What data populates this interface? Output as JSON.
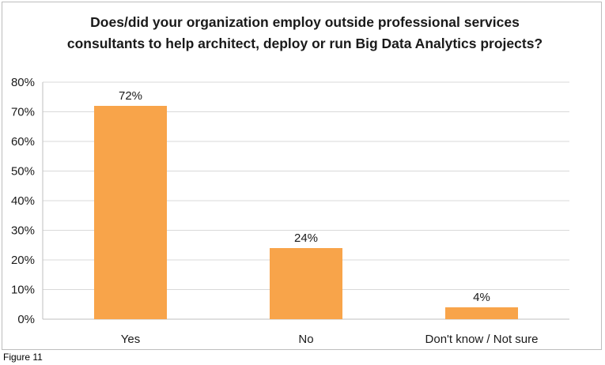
{
  "figure_caption": "Figure 11",
  "chart_data": {
    "type": "bar",
    "title": "Does/did your organization employ outside professional services consultants to help architect, deploy or run Big Data Analytics projects?",
    "categories": [
      "Yes",
      "No",
      "Don't know / Not sure"
    ],
    "values": [
      72,
      24,
      4
    ],
    "data_labels": [
      "72%",
      "24%",
      "4%"
    ],
    "ylim": [
      0,
      80
    ],
    "yticks": [
      0,
      10,
      20,
      30,
      40,
      50,
      60,
      70,
      80
    ],
    "ytick_labels": [
      "0%",
      "10%",
      "20%",
      "30%",
      "40%",
      "50%",
      "60%",
      "70%",
      "80%"
    ],
    "xlabel": "",
    "ylabel": "",
    "grid": true,
    "legend": "none",
    "bar_color": "#F8A44A",
    "gridline_color": "#d9d9d9"
  }
}
